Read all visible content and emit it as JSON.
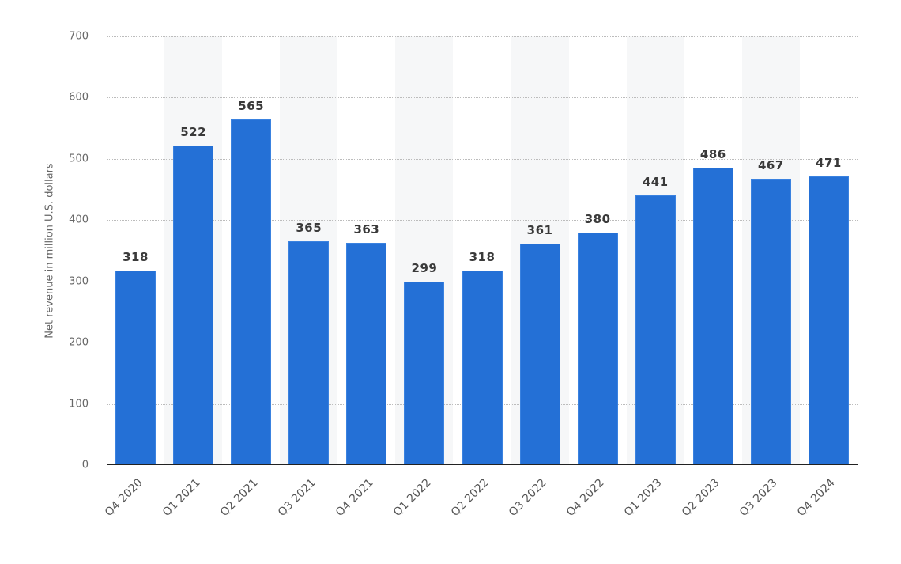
{
  "chart_data": {
    "type": "bar",
    "title": "",
    "xlabel": "",
    "ylabel": "Net revenue in million U.S. dollars",
    "ylim": [
      0,
      700
    ],
    "yticks": [
      0,
      100,
      200,
      300,
      400,
      500,
      600,
      700
    ],
    "grid": true,
    "legend": null,
    "categories": [
      "Q4 2020",
      "Q1 2021",
      "Q2 2021",
      "Q3 2021",
      "Q4 2021",
      "Q1 2022",
      "Q2 2022",
      "Q3 2022",
      "Q4 2022",
      "Q1 2023",
      "Q2 2023",
      "Q3 2023",
      "Q4 2024"
    ],
    "values": [
      318,
      522,
      565,
      365,
      363,
      299,
      318,
      361,
      380,
      441,
      486,
      467,
      471
    ],
    "bar_color": "#2470d6"
  }
}
